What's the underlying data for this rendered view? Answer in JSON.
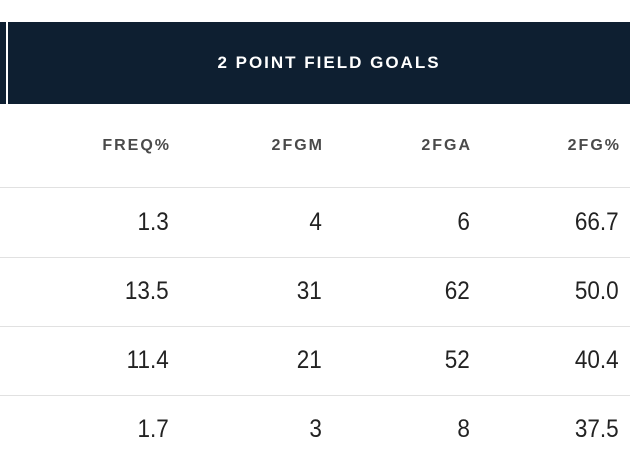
{
  "group_header": {
    "title": "2 POINT FIELD GOALS"
  },
  "columns": [
    "FREQ%",
    "2FGM",
    "2FGA",
    "2FG%"
  ],
  "rows": [
    [
      "1.3",
      "4",
      "6",
      "66.7"
    ],
    [
      "13.5",
      "31",
      "62",
      "50.0"
    ],
    [
      "11.4",
      "21",
      "52",
      "40.4"
    ],
    [
      "1.7",
      "3",
      "8",
      "37.5"
    ]
  ],
  "colors": {
    "header_bg": "#0e1f31",
    "header_text": "#ffffff",
    "row_divider": "#e1e1e1"
  }
}
